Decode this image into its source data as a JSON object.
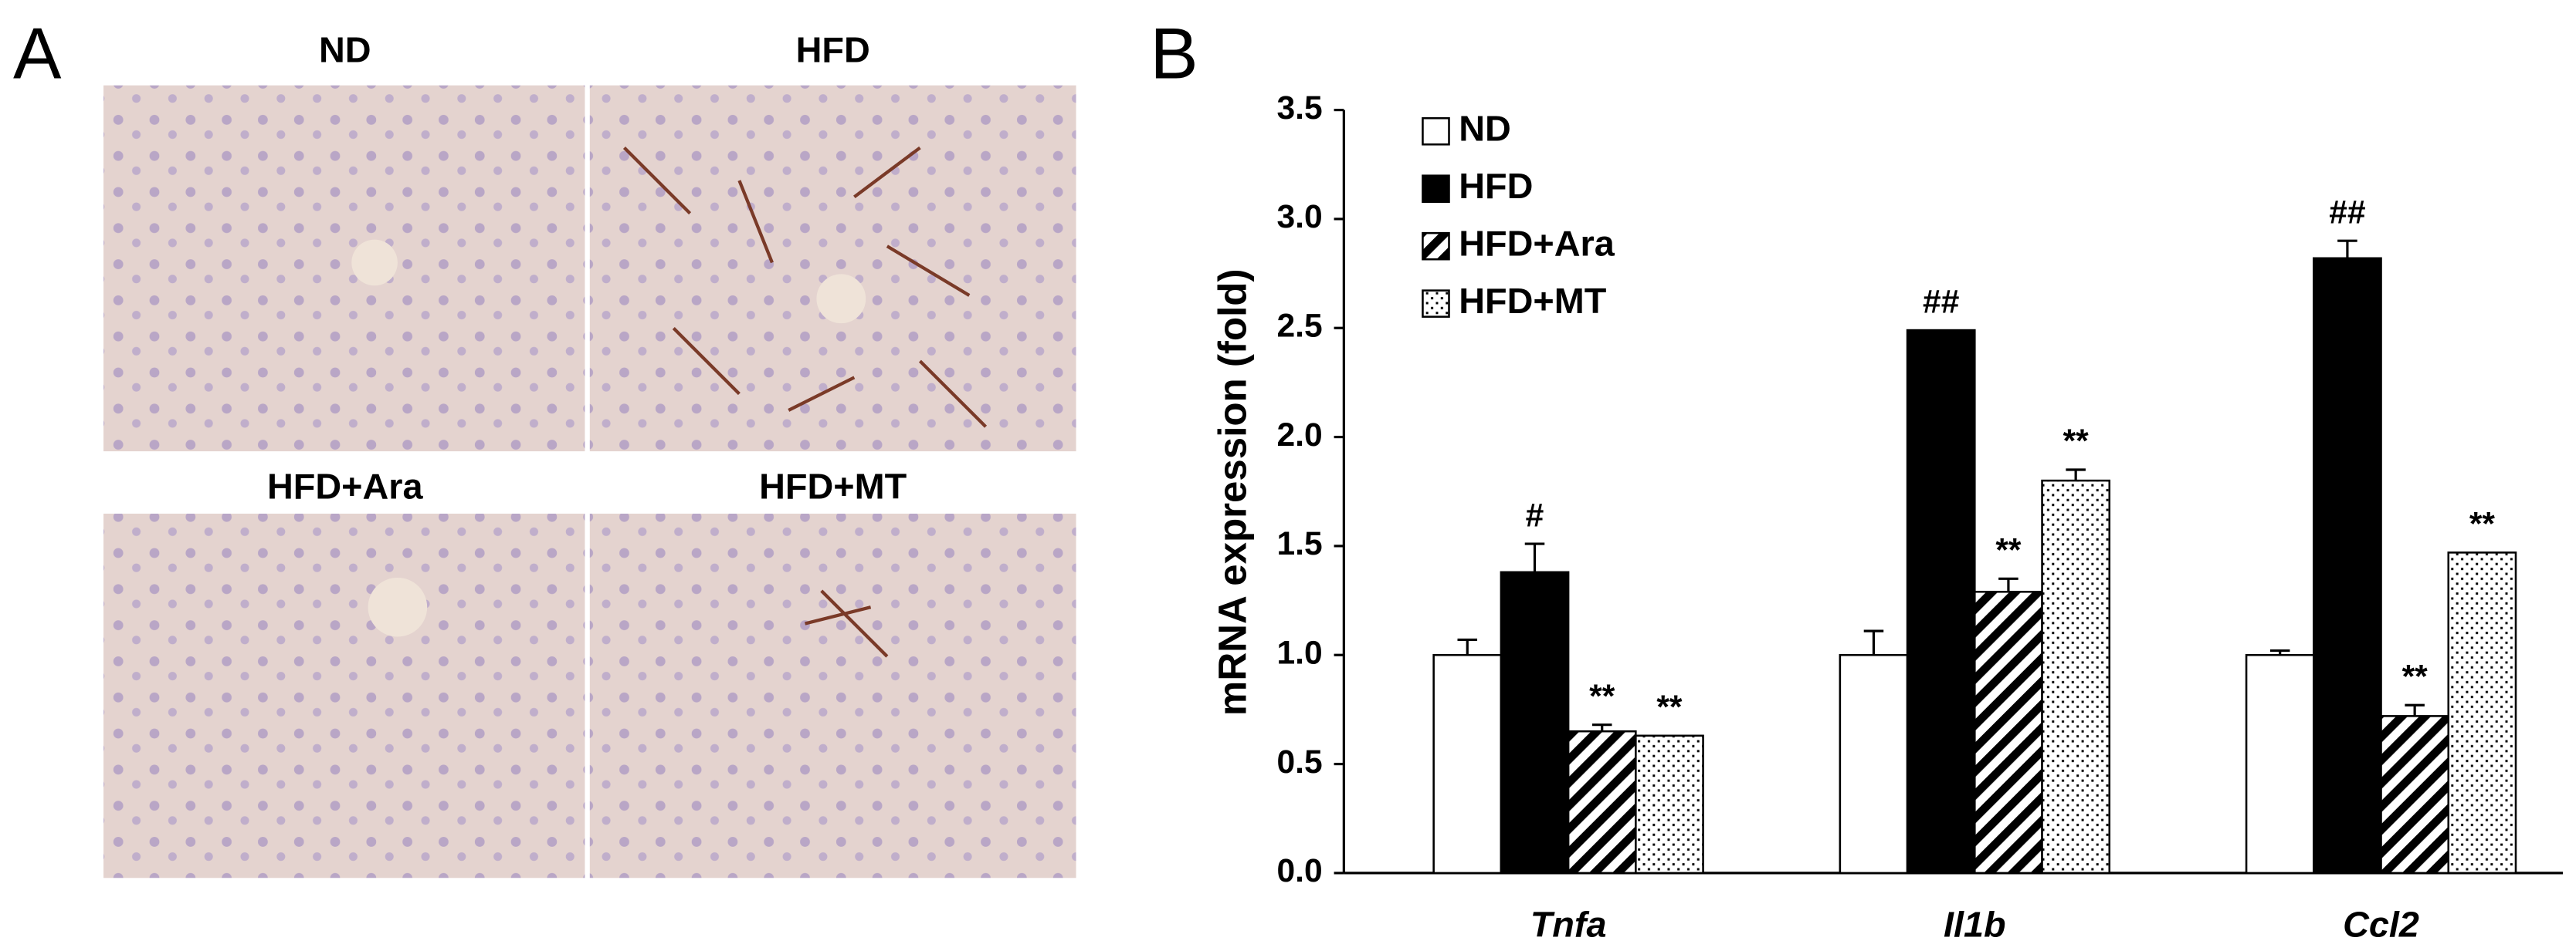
{
  "panel_labels": [
    "A",
    "B"
  ],
  "panel_a": {
    "images": [
      {
        "title": "ND"
      },
      {
        "title": "HFD"
      },
      {
        "title": "HFD+Ara"
      },
      {
        "title": "HFD+MT"
      }
    ]
  },
  "chart_data": {
    "type": "bar",
    "ylabel": "mRNA expression (fold)",
    "categories": [
      "Tnfa",
      "Il1b",
      "Ccl2"
    ],
    "series": [
      {
        "name": "ND",
        "color": "#ffffff",
        "pattern": "solid",
        "values": [
          1.0,
          1.0,
          1.0
        ],
        "errors": [
          0.07,
          0.11,
          0.02
        ],
        "annotations": [
          null,
          null,
          null
        ]
      },
      {
        "name": "HFD",
        "color": "#000000",
        "pattern": "solid",
        "values": [
          1.38,
          2.49,
          2.82
        ],
        "errors": [
          0.13,
          0,
          0.08
        ],
        "annotations": [
          "#",
          "##",
          "##"
        ]
      },
      {
        "name": "HFD+Ara",
        "color": "#000000",
        "pattern": "hatch",
        "values": [
          0.65,
          1.29,
          0.72
        ],
        "errors": [
          0.03,
          0.06,
          0.05
        ],
        "annotations": [
          "**",
          "**",
          "**"
        ]
      },
      {
        "name": "HFD+MT",
        "color": "#000000",
        "pattern": "dots",
        "values": [
          0.63,
          1.8,
          1.47
        ],
        "errors": [
          0,
          0.05,
          0
        ],
        "annotations": [
          "**",
          "**",
          "**"
        ]
      }
    ],
    "ylim": [
      0,
      3.5
    ],
    "yticks": [
      {
        "value": 0,
        "label": "0.0"
      },
      0.5,
      {
        "value": 1,
        "label": "1.0"
      },
      1.5,
      {
        "value": 2,
        "label": "2.0"
      },
      2.5,
      {
        "value": 3,
        "label": "3.0"
      },
      3.5
    ],
    "grid": false,
    "legend": "upper left"
  }
}
